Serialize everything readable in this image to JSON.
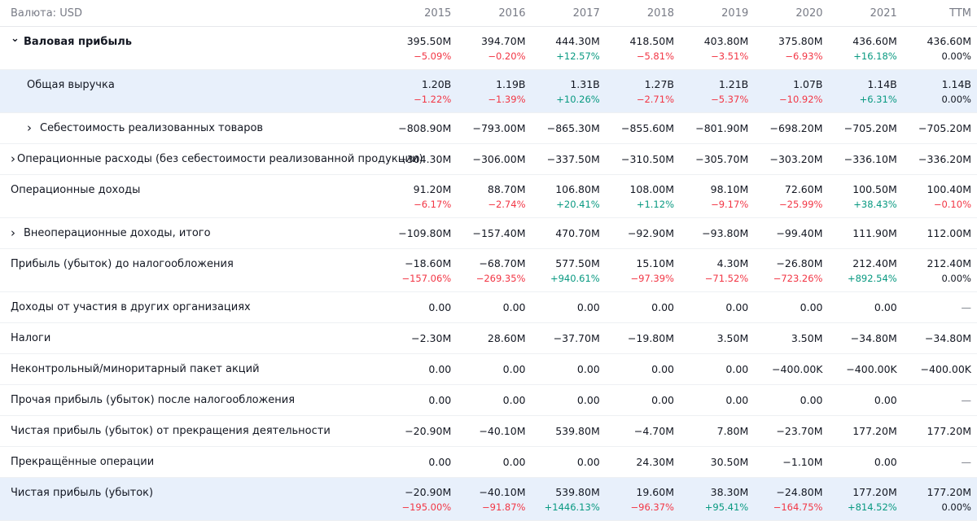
{
  "header": {
    "currency_label": "Валюта: USD",
    "columns": [
      "2015",
      "2016",
      "2017",
      "2018",
      "2019",
      "2020",
      "2021",
      "TTM"
    ]
  },
  "rows": [
    {
      "label": "Валовая прибыль",
      "values": [
        "395.50M",
        "394.70M",
        "444.30M",
        "418.50M",
        "403.80M",
        "375.80M",
        "436.60M",
        "436.60M"
      ],
      "changes": [
        "−5.09%",
        "−0.20%",
        "+12.57%",
        "−5.81%",
        "−3.51%",
        "−6.93%",
        "+16.18%",
        "0.00%"
      ]
    },
    {
      "label": "Общая выручка",
      "values": [
        "1.20B",
        "1.19B",
        "1.31B",
        "1.27B",
        "1.21B",
        "1.07B",
        "1.14B",
        "1.14B"
      ],
      "changes": [
        "−1.22%",
        "−1.39%",
        "+10.26%",
        "−2.71%",
        "−5.37%",
        "−10.92%",
        "+6.31%",
        "0.00%"
      ]
    },
    {
      "label": "Себестоимость реализованных товаров",
      "values": [
        "−808.90M",
        "−793.00M",
        "−865.30M",
        "−855.60M",
        "−801.90M",
        "−698.20M",
        "−705.20M",
        "−705.20M"
      ]
    },
    {
      "label": "Операционные расходы (без себестоимости реализованной продукции)",
      "values": [
        "−304.30M",
        "−306.00M",
        "−337.50M",
        "−310.50M",
        "−305.70M",
        "−303.20M",
        "−336.10M",
        "−336.20M"
      ]
    },
    {
      "label": "Операционные доходы",
      "values": [
        "91.20M",
        "88.70M",
        "106.80M",
        "108.00M",
        "98.10M",
        "72.60M",
        "100.50M",
        "100.40M"
      ],
      "changes": [
        "−6.17%",
        "−2.74%",
        "+20.41%",
        "+1.12%",
        "−9.17%",
        "−25.99%",
        "+38.43%",
        "−0.10%"
      ]
    },
    {
      "label": "Внеоперационные доходы, итого",
      "values": [
        "−109.80M",
        "−157.40M",
        "470.70M",
        "−92.90M",
        "−93.80M",
        "−99.40M",
        "111.90M",
        "112.00M"
      ]
    },
    {
      "label": "Прибыль (убыток) до налогообложения",
      "values": [
        "−18.60M",
        "−68.70M",
        "577.50M",
        "15.10M",
        "4.30M",
        "−26.80M",
        "212.40M",
        "212.40M"
      ],
      "changes": [
        "−157.06%",
        "−269.35%",
        "+940.61%",
        "−97.39%",
        "−71.52%",
        "−723.26%",
        "+892.54%",
        "0.00%"
      ]
    },
    {
      "label": "Доходы от участия в других организациях",
      "values": [
        "0.00",
        "0.00",
        "0.00",
        "0.00",
        "0.00",
        "0.00",
        "0.00",
        "—"
      ]
    },
    {
      "label": "Налоги",
      "values": [
        "−2.30M",
        "28.60M",
        "−37.70M",
        "−19.80M",
        "3.50M",
        "3.50M",
        "−34.80M",
        "−34.80M"
      ]
    },
    {
      "label": "Неконтрольный/миноритарный пакет акций",
      "values": [
        "0.00",
        "0.00",
        "0.00",
        "0.00",
        "0.00",
        "−400.00K",
        "−400.00K",
        "−400.00K"
      ]
    },
    {
      "label": "Прочая прибыль (убыток) после налогообложения",
      "values": [
        "0.00",
        "0.00",
        "0.00",
        "0.00",
        "0.00",
        "0.00",
        "0.00",
        "—"
      ]
    },
    {
      "label": "Чистая прибыль (убыток) от прекращения деятельности",
      "values": [
        "−20.90M",
        "−40.10M",
        "539.80M",
        "−4.70M",
        "7.80M",
        "−23.70M",
        "177.20M",
        "177.20M"
      ]
    },
    {
      "label": "Прекращённые операции",
      "values": [
        "0.00",
        "0.00",
        "0.00",
        "24.30M",
        "30.50M",
        "−1.10M",
        "0.00",
        "—"
      ]
    },
    {
      "label": "Чистая прибыль (убыток)",
      "values": [
        "−20.90M",
        "−40.10M",
        "539.80M",
        "19.60M",
        "38.30M",
        "−24.80M",
        "177.20M",
        "177.20M"
      ],
      "changes": [
        "−195.00%",
        "−91.87%",
        "+1446.13%",
        "−96.37%",
        "+95.41%",
        "−164.75%",
        "+814.52%",
        "0.00%"
      ]
    }
  ],
  "colors": {
    "negative": "#f23645",
    "positive": "#089981",
    "highlight": "#e8f0fb",
    "muted": "#787b86"
  },
  "icons": {
    "expanded": "chevron-down-icon",
    "collapsed": "chevron-right-icon"
  }
}
